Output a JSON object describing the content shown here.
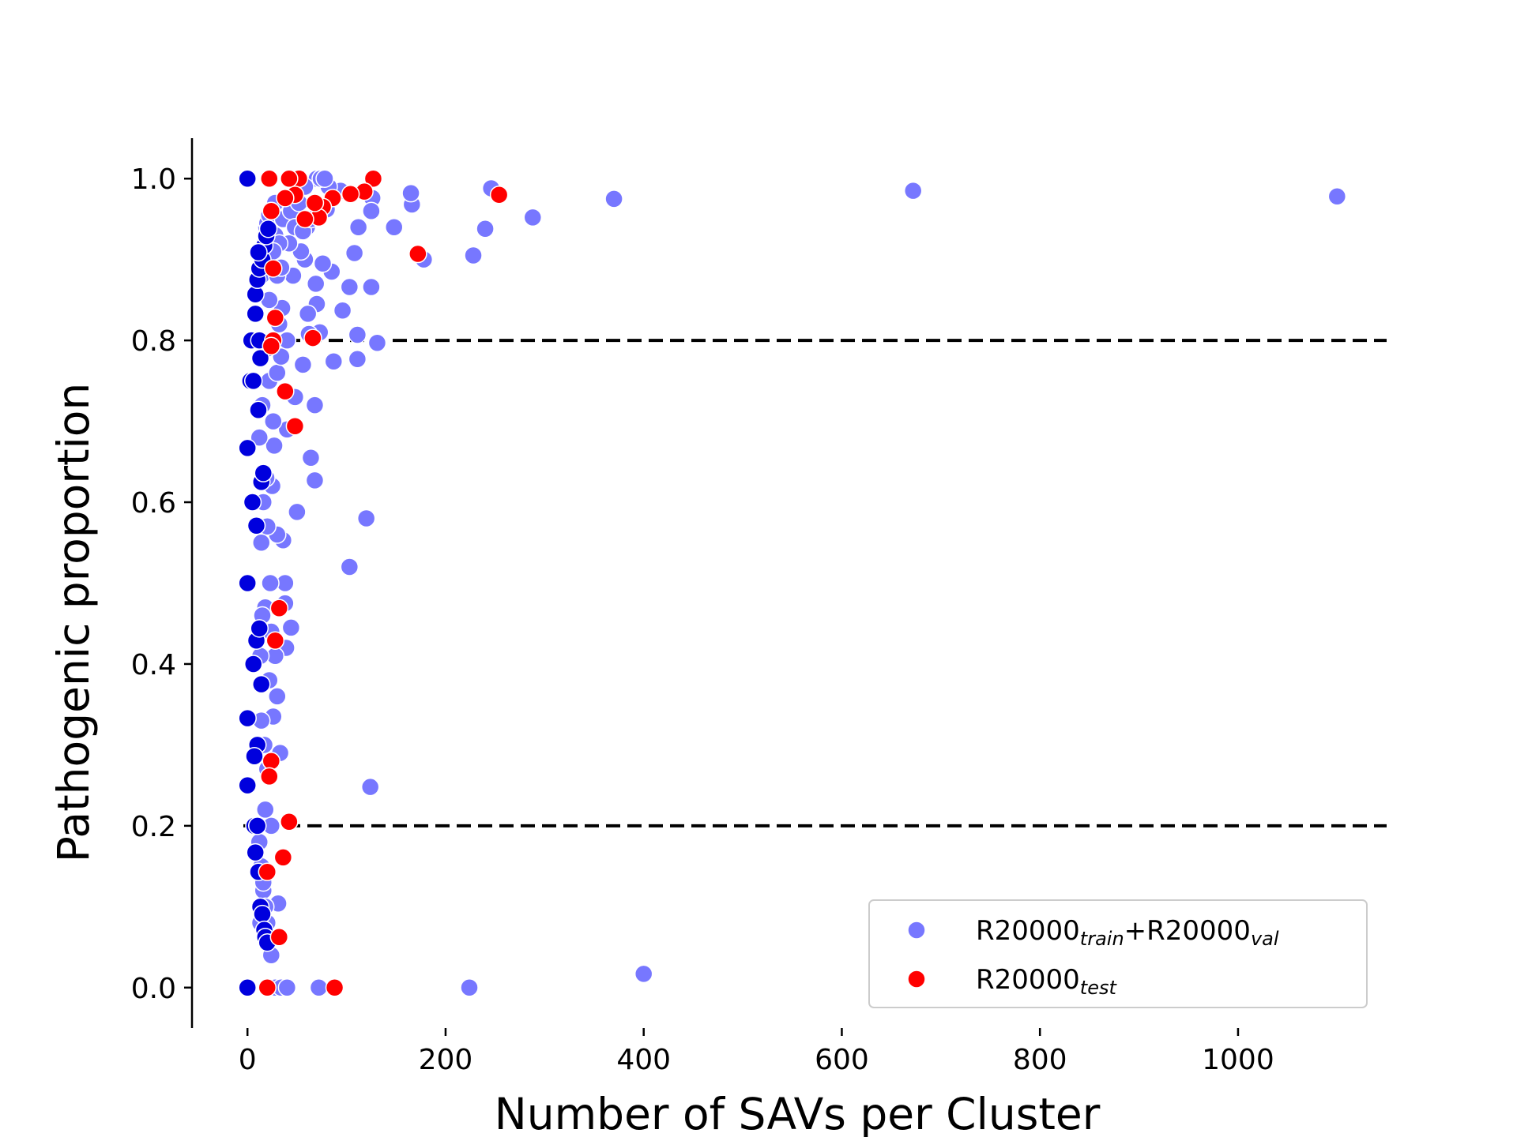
{
  "chart_data": {
    "type": "scatter",
    "xlabel": "Number of SAVs per Cluster",
    "ylabel": "Pathogenic proportion",
    "xlim": [
      -56,
      1150
    ],
    "ylim": [
      -0.05,
      1.05
    ],
    "x_ticks": [
      0,
      200,
      400,
      600,
      800,
      1000
    ],
    "y_ticks": [
      0.0,
      0.2,
      0.4,
      0.6,
      0.8,
      1.0
    ],
    "reference_lines": [
      {
        "y": 0.8,
        "style": "dashed"
      },
      {
        "y": 0.2,
        "style": "dashed"
      }
    ],
    "legend": {
      "placement": "lower-right"
    },
    "series": [
      {
        "name": "R20000",
        "name_parts": [
          [
            "R20000",
            ""
          ],
          [
            "train",
            "sub"
          ],
          [
            "+R20000",
            ""
          ],
          [
            "val",
            "sub"
          ]
        ],
        "color": "#7777ff",
        "points": [
          [
            1100,
            0.978
          ],
          [
            672,
            0.985
          ],
          [
            370,
            0.975
          ],
          [
            288,
            0.952
          ],
          [
            246,
            0.988
          ],
          [
            240,
            0.938
          ],
          [
            228,
            0.905
          ],
          [
            178,
            0.9
          ],
          [
            166,
            0.968
          ],
          [
            165,
            0.982
          ],
          [
            148,
            0.94
          ],
          [
            126,
            0.976
          ],
          [
            125,
            0.96
          ],
          [
            125,
            0.866
          ],
          [
            131,
            0.797
          ],
          [
            120,
            0.58
          ],
          [
            124,
            0.248
          ],
          [
            112,
            0.94
          ],
          [
            111,
            0.807
          ],
          [
            111,
            0.777
          ],
          [
            108,
            0.908
          ],
          [
            103,
            0.52
          ],
          [
            103,
            0.866
          ],
          [
            96,
            0.837
          ],
          [
            94,
            0.985
          ],
          [
            87,
            0.774
          ],
          [
            85,
            0.885
          ],
          [
            82,
            0.99
          ],
          [
            80,
            0.962
          ],
          [
            76,
            0.895
          ],
          [
            73,
            0.81
          ],
          [
            70,
            0.845
          ],
          [
            69,
            0.87
          ],
          [
            68,
            0.72
          ],
          [
            68,
            0.627
          ],
          [
            64,
            0.655
          ],
          [
            62,
            0.808
          ],
          [
            61,
            0.833
          ],
          [
            60,
            0.94
          ],
          [
            58,
            0.9
          ],
          [
            56,
            0.77
          ],
          [
            54,
            0.91
          ],
          [
            50,
            0.588
          ],
          [
            48,
            0.73
          ],
          [
            46,
            0.88
          ],
          [
            44,
            0.445
          ],
          [
            42,
            0.92
          ],
          [
            40,
            0.69
          ],
          [
            39,
            0.42
          ],
          [
            38,
            0.5
          ],
          [
            38,
            0.475
          ],
          [
            36,
            0.553
          ],
          [
            35,
            0.84
          ],
          [
            33,
            0.29
          ],
          [
            31,
            0.104
          ],
          [
            30,
            0.36
          ],
          [
            30,
            0.56
          ],
          [
            28,
            0.97
          ],
          [
            28,
            0.41
          ],
          [
            27,
            0.67
          ],
          [
            26,
            0.335
          ],
          [
            26,
            0.7
          ],
          [
            25,
            0.62
          ],
          [
            24,
            0.44
          ],
          [
            24,
            0.2
          ],
          [
            23,
            0.5
          ],
          [
            22,
            0.38
          ],
          [
            22,
            0.75
          ],
          [
            22,
            0.85
          ],
          [
            20,
            0.27
          ],
          [
            20,
            0.57
          ],
          [
            19,
            0.63
          ],
          [
            18,
            0.47
          ],
          [
            18,
            0.22
          ],
          [
            17,
            0.3
          ],
          [
            17,
            0.9
          ],
          [
            16,
            0.6
          ],
          [
            16,
            0.12
          ],
          [
            15,
            0.46
          ],
          [
            15,
            0.72
          ],
          [
            14,
            0.33
          ],
          [
            14,
            0.55
          ],
          [
            13,
            0.08
          ],
          [
            13,
            0.41
          ],
          [
            12,
            0.18
          ],
          [
            12,
            0.68
          ],
          [
            24,
            0.04
          ],
          [
            22,
            0.06
          ],
          [
            20,
            0.08
          ],
          [
            18,
            0.1
          ],
          [
            16,
            0.13
          ],
          [
            14,
            0.15
          ],
          [
            28,
            0.0
          ],
          [
            34,
            0.0
          ],
          [
            40,
            0.0
          ],
          [
            72,
            0.0
          ],
          [
            224,
            0.0
          ],
          [
            400,
            0.017
          ],
          [
            14,
            0.88
          ],
          [
            15,
            0.9
          ],
          [
            16,
            0.91
          ],
          [
            17,
            0.92
          ],
          [
            18,
            0.93
          ],
          [
            19,
            0.94
          ],
          [
            20,
            0.945
          ],
          [
            22,
            0.955
          ],
          [
            24,
            0.96
          ],
          [
            28,
            0.93
          ],
          [
            32,
            0.92
          ],
          [
            36,
            0.95
          ],
          [
            30,
            0.88
          ],
          [
            34,
            0.89
          ],
          [
            26,
            0.91
          ],
          [
            44,
            0.96
          ],
          [
            48,
            0.94
          ],
          [
            52,
            0.97
          ],
          [
            56,
            0.935
          ],
          [
            64,
            0.95
          ],
          [
            70,
            1.0
          ],
          [
            74,
            1.0
          ],
          [
            78,
            1.0
          ],
          [
            58,
            0.99
          ],
          [
            30,
            0.76
          ],
          [
            26,
            0.8
          ],
          [
            34,
            0.78
          ],
          [
            40,
            0.8
          ],
          [
            20,
            0.79
          ],
          [
            32,
            0.82
          ]
        ]
      },
      {
        "name": "R20000",
        "name_parts": [
          [
            "R20000",
            ""
          ],
          [
            "test",
            "sub"
          ]
        ],
        "color": "#0000dd",
        "points": [
          [
            0,
            1.0
          ],
          [
            0,
            0.667
          ],
          [
            0,
            0.5
          ],
          [
            0,
            0.333
          ],
          [
            0,
            0.25
          ],
          [
            0,
            0.0
          ],
          [
            3,
            0.75
          ],
          [
            4,
            0.8
          ],
          [
            5,
            0.6
          ],
          [
            6,
            0.4
          ],
          [
            7,
            0.2
          ],
          [
            8,
            0.167
          ],
          [
            8,
            0.857
          ],
          [
            9,
            0.571
          ],
          [
            9,
            0.429
          ],
          [
            10,
            0.3
          ],
          [
            10,
            0.875
          ],
          [
            11,
            0.143
          ],
          [
            11,
            0.714
          ],
          [
            12,
            0.444
          ],
          [
            12,
            0.889
          ],
          [
            13,
            0.1
          ],
          [
            13,
            0.778
          ],
          [
            14,
            0.375
          ],
          [
            14,
            0.625
          ],
          [
            15,
            0.9
          ],
          [
            15,
            0.0909
          ],
          [
            16,
            0.636
          ],
          [
            17,
            0.0714
          ],
          [
            17,
            0.917
          ],
          [
            18,
            0.0625
          ],
          [
            19,
            0.929
          ],
          [
            20,
            0.0556
          ],
          [
            21,
            0.938
          ],
          [
            7,
            0.286
          ],
          [
            8,
            0.833
          ],
          [
            6,
            0.75
          ],
          [
            10,
            0.2
          ],
          [
            12,
            0.8
          ],
          [
            11,
            0.909
          ]
        ]
      },
      {
        "name": "R20000",
        "name_parts": [
          [
            "R20000",
            ""
          ],
          [
            "test",
            "sub"
          ]
        ],
        "color": "#ff0000",
        "points": [
          [
            254,
            0.98
          ],
          [
            172,
            0.907
          ],
          [
            127,
            1.0
          ],
          [
            118,
            0.984
          ],
          [
            104,
            0.981
          ],
          [
            86,
            0.976
          ],
          [
            76,
            0.965
          ],
          [
            72,
            0.952
          ],
          [
            68,
            0.97
          ],
          [
            58,
            0.95
          ],
          [
            52,
            1.0
          ],
          [
            48,
            0.98
          ],
          [
            42,
            1.0
          ],
          [
            38,
            0.976
          ],
          [
            22,
            1.0
          ],
          [
            24,
            0.96
          ],
          [
            26,
            0.889
          ],
          [
            28,
            0.828
          ],
          [
            26,
            0.8
          ],
          [
            24,
            0.793
          ],
          [
            66,
            0.803
          ],
          [
            38,
            0.737
          ],
          [
            48,
            0.694
          ],
          [
            32,
            0.469
          ],
          [
            28,
            0.429
          ],
          [
            24,
            0.28
          ],
          [
            22,
            0.261
          ],
          [
            42,
            0.205
          ],
          [
            36,
            0.161
          ],
          [
            20,
            0.143
          ],
          [
            32,
            0.0625
          ],
          [
            20,
            0.0
          ],
          [
            88,
            0.0
          ]
        ]
      }
    ]
  }
}
